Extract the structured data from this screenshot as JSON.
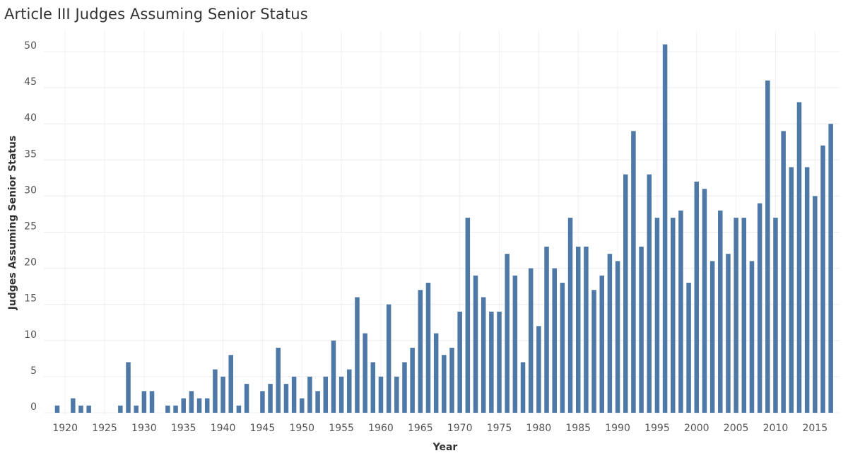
{
  "title": "Article III Judges Assuming Senior Status",
  "chart_data": {
    "type": "bar",
    "title": "Article III Judges Assuming Senior Status",
    "xlabel": "Year",
    "ylabel": "Judges Assuming Senior Status",
    "xlim": [
      1917,
      2018
    ],
    "ylim": [
      0,
      53
    ],
    "yticks": [
      0,
      5,
      10,
      15,
      20,
      25,
      30,
      35,
      40,
      45,
      50
    ],
    "xticks": [
      1920,
      1925,
      1930,
      1935,
      1940,
      1945,
      1950,
      1955,
      1960,
      1965,
      1970,
      1975,
      1980,
      1985,
      1990,
      1995,
      2000,
      2005,
      2010,
      2015
    ],
    "grid": true,
    "bar_color": "#4e79a7",
    "x": [
      1919,
      1921,
      1922,
      1923,
      1927,
      1928,
      1929,
      1930,
      1931,
      1933,
      1934,
      1935,
      1936,
      1937,
      1938,
      1939,
      1940,
      1941,
      1942,
      1943,
      1945,
      1946,
      1947,
      1948,
      1949,
      1950,
      1951,
      1952,
      1953,
      1954,
      1955,
      1956,
      1957,
      1958,
      1959,
      1960,
      1961,
      1962,
      1963,
      1964,
      1965,
      1966,
      1967,
      1968,
      1969,
      1970,
      1971,
      1972,
      1973,
      1974,
      1975,
      1976,
      1977,
      1978,
      1979,
      1980,
      1981,
      1982,
      1983,
      1984,
      1985,
      1986,
      1987,
      1988,
      1989,
      1990,
      1991,
      1992,
      1993,
      1994,
      1995,
      1996,
      1997,
      1998,
      1999,
      2000,
      2001,
      2002,
      2003,
      2004,
      2005,
      2006,
      2007,
      2008,
      2009,
      2010,
      2011,
      2012,
      2013,
      2014,
      2015,
      2016,
      2017
    ],
    "values": [
      1,
      2,
      1,
      1,
      1,
      7,
      1,
      3,
      3,
      1,
      1,
      2,
      3,
      2,
      2,
      6,
      5,
      8,
      1,
      4,
      3,
      4,
      9,
      4,
      5,
      2,
      5,
      3,
      5,
      10,
      5,
      6,
      16,
      11,
      7,
      5,
      15,
      5,
      7,
      9,
      17,
      18,
      11,
      8,
      9,
      14,
      27,
      19,
      16,
      14,
      14,
      22,
      19,
      7,
      20,
      12,
      23,
      20,
      18,
      27,
      23,
      23,
      17,
      19,
      22,
      21,
      33,
      39,
      23,
      33,
      27,
      51,
      27,
      28,
      18,
      32,
      31,
      21,
      28,
      22,
      27,
      27,
      21,
      29,
      46,
      27,
      39,
      34,
      43,
      34,
      30,
      37,
      40
    ]
  }
}
